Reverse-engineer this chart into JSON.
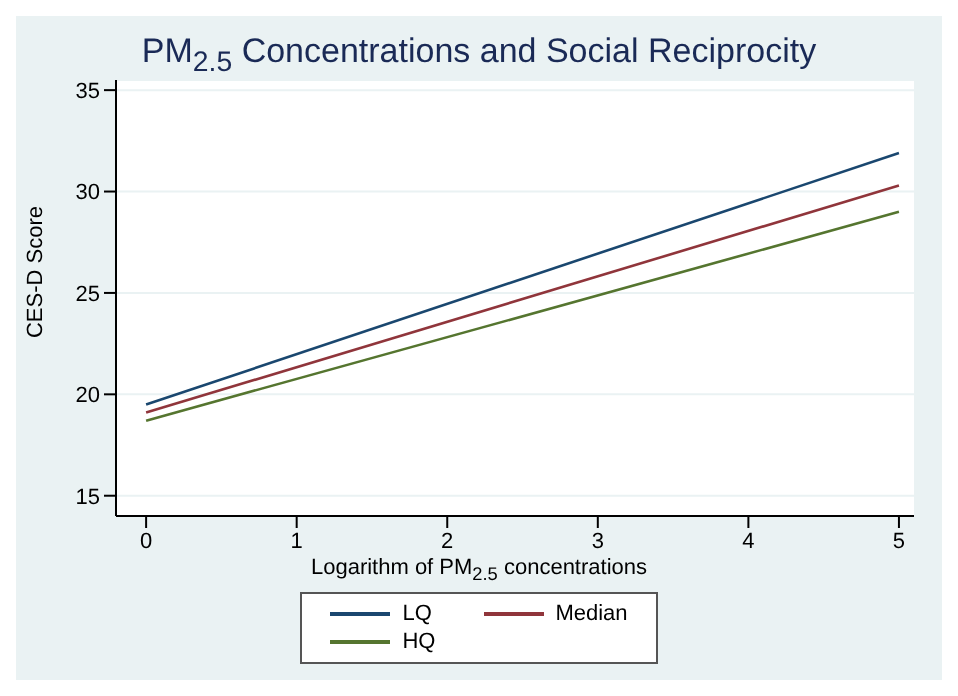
{
  "chart_data": {
    "type": "line",
    "title": "PM$_{2.5}$ Concentrations and Social Reciprocity",
    "xlabel": "Logarithm of PM$_{2.5}$ concentrations",
    "ylabel": "CES-D Score",
    "x": [
      0,
      5
    ],
    "series": [
      {
        "name": "LQ",
        "color": "#1a476f",
        "values": [
          19.5,
          31.9
        ]
      },
      {
        "name": "Median",
        "color": "#90353b",
        "values": [
          19.1,
          30.3
        ]
      },
      {
        "name": "HQ",
        "color": "#55752f",
        "values": [
          18.7,
          29.0
        ]
      }
    ],
    "xlim": [
      -0.2,
      5.1
    ],
    "xticks": [
      0,
      1,
      2,
      3,
      4,
      5
    ],
    "ylim": [
      14,
      35.5
    ],
    "yticks": [
      15,
      20,
      25,
      30,
      35
    ],
    "grid": "y",
    "legend": "bottom",
    "marker": "none",
    "line_style": "solid"
  }
}
